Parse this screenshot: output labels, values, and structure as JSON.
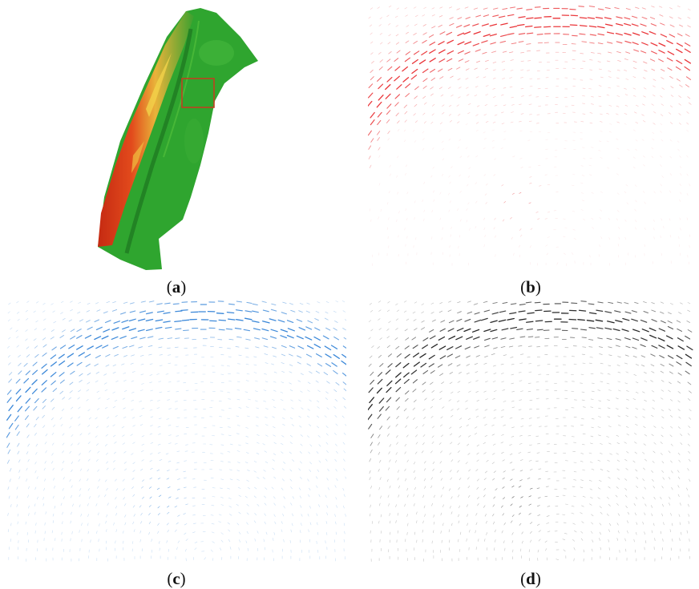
{
  "figure": {
    "panels": [
      {
        "id": "a",
        "caption_open": "(",
        "caption_letter": "a",
        "caption_close": ")",
        "content": "terrain-map",
        "colors": [
          "#2fa52f",
          "#e23a1e",
          "#f3d84a",
          "#b76a2a"
        ]
      },
      {
        "id": "b",
        "caption_open": "(",
        "caption_letter": "b",
        "caption_close": ")",
        "content": "vector-field",
        "color": "#e8262a"
      },
      {
        "id": "c",
        "caption_open": "(",
        "caption_letter": "c",
        "caption_close": ")",
        "content": "vector-field",
        "color": "#2d7fd6"
      },
      {
        "id": "d",
        "caption_open": "(",
        "caption_letter": "d",
        "caption_close": ")",
        "content": "vector-field",
        "color": "#1a1a1a"
      }
    ]
  }
}
